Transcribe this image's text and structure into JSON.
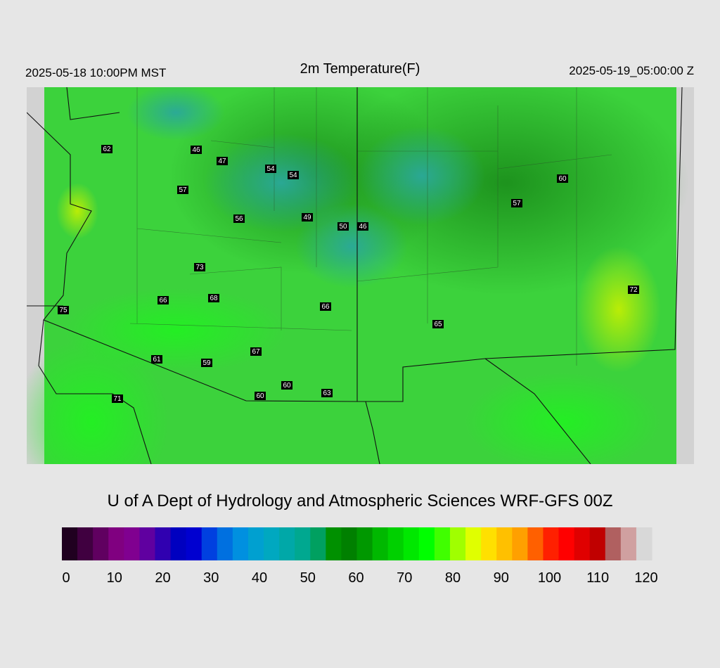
{
  "header": {
    "left": "2025-05-18 10:00PM MST",
    "title": "2m Temperature(F)",
    "right": "2025-05-19_05:00:00 Z"
  },
  "map": {
    "stations": [
      62,
      46,
      47,
      54,
      54,
      57,
      60,
      57,
      56,
      49,
      50,
      46,
      73,
      72,
      75,
      66,
      68,
      66,
      65,
      67,
      61,
      59,
      60,
      63,
      60,
      71
    ]
  },
  "credit": "U of A Dept of Hydrology and Atmospheric Sciences WRF-GFS 00Z",
  "colorbar": {
    "range": [
      0,
      120
    ],
    "ticks": [
      0,
      10,
      20,
      30,
      40,
      50,
      60,
      70,
      80,
      90,
      100,
      110,
      120
    ],
    "colors": [
      "#200020",
      "#400040",
      "#600060",
      "#800080",
      "#800090",
      "#6000a0",
      "#3000b0",
      "#0000c0",
      "#0000d0",
      "#0040e0",
      "#0070e0",
      "#0090e0",
      "#00a0d0",
      "#00a8c0",
      "#00a8a8",
      "#00a890",
      "#00a060",
      "#009000",
      "#008000",
      "#009800",
      "#00b800",
      "#00d000",
      "#00e800",
      "#00ff00",
      "#40ff00",
      "#a0ff00",
      "#e0ff00",
      "#ffe000",
      "#ffc000",
      "#ffa000",
      "#ff6000",
      "#ff2000",
      "#ff0000",
      "#e00000",
      "#c00000",
      "#b06060",
      "#d0a0a0",
      "#d8d8d8"
    ]
  }
}
